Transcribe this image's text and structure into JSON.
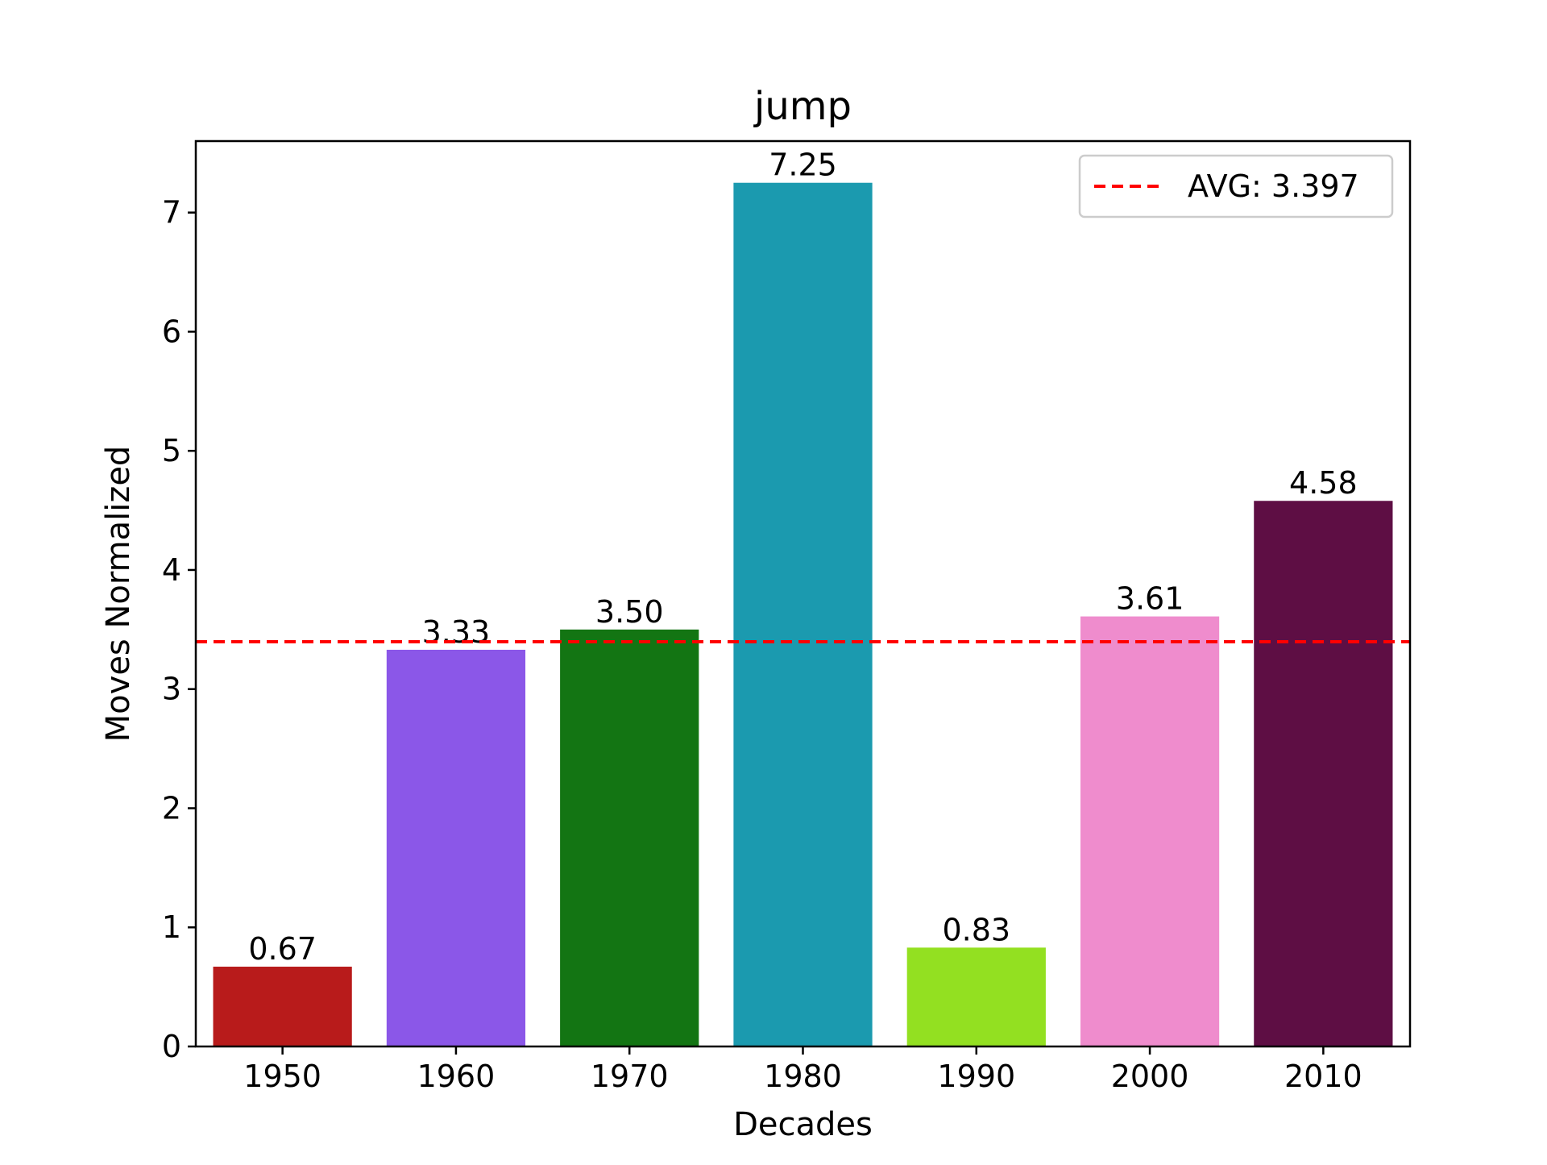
{
  "chart_data": {
    "type": "bar",
    "title": "jump",
    "xlabel": "Decades",
    "ylabel": "Moves Normalized",
    "categories": [
      "1950",
      "1960",
      "1970",
      "1980",
      "1990",
      "2000",
      "2010"
    ],
    "values": [
      0.67,
      3.33,
      3.5,
      7.25,
      0.83,
      3.61,
      4.58
    ],
    "value_labels": [
      "0.67",
      "3.33",
      "3.50",
      "7.25",
      "0.83",
      "3.61",
      "4.58"
    ],
    "colors": [
      "#b81b1b",
      "#8b57e8",
      "#137513",
      "#1b9aaf",
      "#93e021",
      "#ef8ccd",
      "#5e0e44"
    ],
    "ylim": [
      0,
      7.6
    ],
    "yticks": [
      0,
      1,
      2,
      3,
      4,
      5,
      6,
      7
    ],
    "grid": false,
    "average_line": {
      "value": 3.397,
      "label": "AVG: 3.397",
      "color": "#ff0000",
      "style": "dashed"
    },
    "legend": {
      "position": "top-right",
      "entries": [
        "AVG: 3.397"
      ]
    }
  }
}
